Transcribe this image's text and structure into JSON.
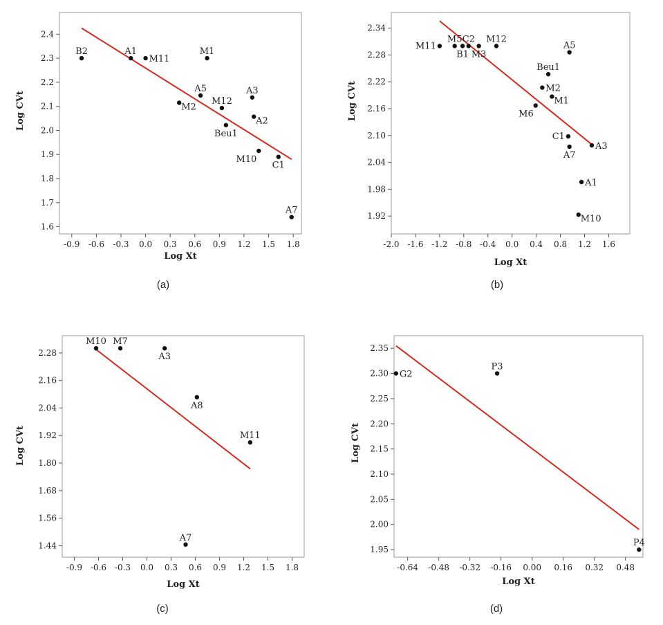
{
  "colors": {
    "fit_line": "#d42a20",
    "points": "#111111",
    "frame": "#9a9a9a"
  },
  "chart_data": [
    {
      "type": "scatter",
      "caption": "(a)",
      "xlabel": "Log Xt",
      "ylabel": "Log CVt",
      "xlim": [
        -1.05,
        1.9
      ],
      "ylim": [
        1.57,
        2.49
      ],
      "xticks": [
        -0.9,
        -0.6,
        -0.3,
        0.0,
        0.3,
        0.6,
        0.9,
        1.2,
        1.5,
        1.8
      ],
      "xtick_labels": [
        "-0.9",
        "-0.6",
        "-0.3",
        "0.0",
        "0.3",
        "0.6",
        "0.9",
        "1.2",
        "1.5",
        "1.8"
      ],
      "yticks": [
        1.6,
        1.7,
        1.8,
        1.9,
        2.0,
        2.1,
        2.2,
        2.3,
        2.4
      ],
      "ytick_labels": [
        "1.6",
        "1.7",
        "1.8",
        "1.9",
        "2.0",
        "2.1",
        "2.2",
        "2.3",
        "2.4"
      ],
      "points": [
        {
          "label": "B2",
          "x": -0.78,
          "y": 2.3,
          "pos": "above"
        },
        {
          "label": "A1",
          "x": -0.18,
          "y": 2.3,
          "pos": "above"
        },
        {
          "label": "M11",
          "x": 0.0,
          "y": 2.3,
          "pos": "right"
        },
        {
          "label": "M1",
          "x": 0.75,
          "y": 2.3,
          "pos": "above"
        },
        {
          "label": "A5",
          "x": 0.67,
          "y": 2.145,
          "pos": "above"
        },
        {
          "label": "M2",
          "x": 0.41,
          "y": 2.115,
          "pos": "right-below"
        },
        {
          "label": "M12",
          "x": 0.93,
          "y": 2.093,
          "pos": "above"
        },
        {
          "label": "A3",
          "x": 1.3,
          "y": 2.137,
          "pos": "above"
        },
        {
          "label": "A2",
          "x": 1.32,
          "y": 2.057,
          "pos": "right-below"
        },
        {
          "label": "Beu1",
          "x": 0.98,
          "y": 2.022,
          "pos": "below"
        },
        {
          "label": "M10",
          "x": 1.38,
          "y": 1.915,
          "pos": "left-below"
        },
        {
          "label": "C1",
          "x": 1.62,
          "y": 1.89,
          "pos": "below"
        },
        {
          "label": "A7",
          "x": 1.78,
          "y": 1.64,
          "pos": "above"
        }
      ],
      "fit": {
        "x": [
          -0.78,
          1.78
        ],
        "y": [
          2.425,
          1.88
        ]
      }
    },
    {
      "type": "scatter",
      "caption": "(b)",
      "xlabel": "Log Xt",
      "ylabel": "Log CVt",
      "xlim": [
        -2.0,
        1.95
      ],
      "ylim": [
        1.88,
        2.375
      ],
      "xticks": [
        -2.0,
        -1.6,
        -1.2,
        -0.8,
        -0.4,
        0.0,
        0.4,
        0.8,
        1.2,
        1.6
      ],
      "xtick_labels": [
        "-2.0",
        "-1.6",
        "-1.2",
        "-0.8",
        "-0.4",
        "0.0",
        "0.4",
        "0.8",
        "1.2",
        "1.6"
      ],
      "yticks": [
        1.92,
        1.98,
        2.04,
        2.1,
        2.16,
        2.22,
        2.28,
        2.34
      ],
      "ytick_labels": [
        "1.92",
        "1.98",
        "2.04",
        "2.10",
        "2.16",
        "2.22",
        "2.28",
        "2.34"
      ],
      "points": [
        {
          "label": "M11",
          "x": -1.2,
          "y": 2.3,
          "pos": "left"
        },
        {
          "label": "M5",
          "x": -0.95,
          "y": 2.3,
          "pos": "above"
        },
        {
          "label": "B1",
          "x": -0.82,
          "y": 2.3,
          "pos": "below"
        },
        {
          "label": "C2",
          "x": -0.72,
          "y": 2.3,
          "pos": "above"
        },
        {
          "label": "M3",
          "x": -0.55,
          "y": 2.3,
          "pos": "below"
        },
        {
          "label": "M12",
          "x": -0.26,
          "y": 2.3,
          "pos": "above"
        },
        {
          "label": "A5",
          "x": 0.95,
          "y": 2.286,
          "pos": "above"
        },
        {
          "label": "Beu1",
          "x": 0.6,
          "y": 2.237,
          "pos": "above"
        },
        {
          "label": "M2",
          "x": 0.5,
          "y": 2.207,
          "pos": "right"
        },
        {
          "label": "M1",
          "x": 0.66,
          "y": 2.187,
          "pos": "right-below"
        },
        {
          "label": "M6",
          "x": 0.39,
          "y": 2.167,
          "pos": "left-below"
        },
        {
          "label": "C1",
          "x": 0.93,
          "y": 2.098,
          "pos": "left"
        },
        {
          "label": "A7",
          "x": 0.95,
          "y": 2.075,
          "pos": "below"
        },
        {
          "label": "A3",
          "x": 1.32,
          "y": 2.078,
          "pos": "right"
        },
        {
          "label": "A1",
          "x": 1.15,
          "y": 1.996,
          "pos": "right"
        },
        {
          "label": "M10",
          "x": 1.1,
          "y": 1.923,
          "pos": "right-below"
        }
      ],
      "fit": {
        "x": [
          -1.2,
          1.32
        ],
        "y": [
          2.356,
          2.08
        ]
      }
    },
    {
      "type": "scatter",
      "caption": "(c)",
      "xlabel": "Log Xt",
      "ylabel": "Log CVt",
      "xlim": [
        -1.05,
        1.95
      ],
      "ylim": [
        1.39,
        2.355
      ],
      "xticks": [
        -0.9,
        -0.6,
        -0.3,
        0.0,
        0.3,
        0.6,
        0.9,
        1.2,
        1.5,
        1.8
      ],
      "xtick_labels": [
        "-0.9",
        "-0.6",
        "-0.3",
        "0.0",
        "0.3",
        "0.6",
        "0.9",
        "1.2",
        "1.5",
        "1.8"
      ],
      "yticks": [
        1.44,
        1.56,
        1.68,
        1.8,
        1.92,
        2.04,
        2.16,
        2.28
      ],
      "ytick_labels": [
        "1.44",
        "1.56",
        "1.68",
        "1.80",
        "1.92",
        "2.04",
        "2.16",
        "2.28"
      ],
      "points": [
        {
          "label": "M10",
          "x": -0.63,
          "y": 2.3,
          "pos": "above"
        },
        {
          "label": "M7",
          "x": -0.33,
          "y": 2.3,
          "pos": "above"
        },
        {
          "label": "A3",
          "x": 0.22,
          "y": 2.3,
          "pos": "below"
        },
        {
          "label": "A8",
          "x": 0.62,
          "y": 2.087,
          "pos": "below"
        },
        {
          "label": "M11",
          "x": 1.28,
          "y": 1.89,
          "pos": "above"
        },
        {
          "label": "A7",
          "x": 0.48,
          "y": 1.445,
          "pos": "above"
        }
      ],
      "fit": {
        "x": [
          -0.63,
          1.28
        ],
        "y": [
          2.295,
          1.775
        ]
      }
    },
    {
      "type": "scatter",
      "caption": "(d)",
      "xlabel": "Log Xt",
      "ylabel": "Log CVt",
      "xlim": [
        -0.71,
        0.57
      ],
      "ylim": [
        1.935,
        2.375
      ],
      "xticks": [
        -0.64,
        -0.48,
        -0.32,
        -0.16,
        0.0,
        0.16,
        0.32,
        0.48
      ],
      "xtick_labels": [
        "-0.64",
        "-0.48",
        "-0.32",
        "-0.16",
        "0.00",
        "0.16",
        "0.32",
        "0.48"
      ],
      "yticks": [
        1.95,
        2.0,
        2.05,
        2.1,
        2.15,
        2.2,
        2.25,
        2.3,
        2.35
      ],
      "ytick_labels": [
        "1.95",
        "2.00",
        "2.05",
        "2.10",
        "2.15",
        "2.20",
        "2.25",
        "2.30",
        "2.35"
      ],
      "points": [
        {
          "label": "G2",
          "x": -0.7,
          "y": 2.3,
          "pos": "right"
        },
        {
          "label": "P3",
          "x": -0.18,
          "y": 2.3,
          "pos": "above"
        },
        {
          "label": "P4",
          "x": 0.55,
          "y": 1.95,
          "pos": "above"
        }
      ],
      "fit": {
        "x": [
          -0.7,
          0.55
        ],
        "y": [
          2.355,
          1.99
        ]
      }
    }
  ]
}
